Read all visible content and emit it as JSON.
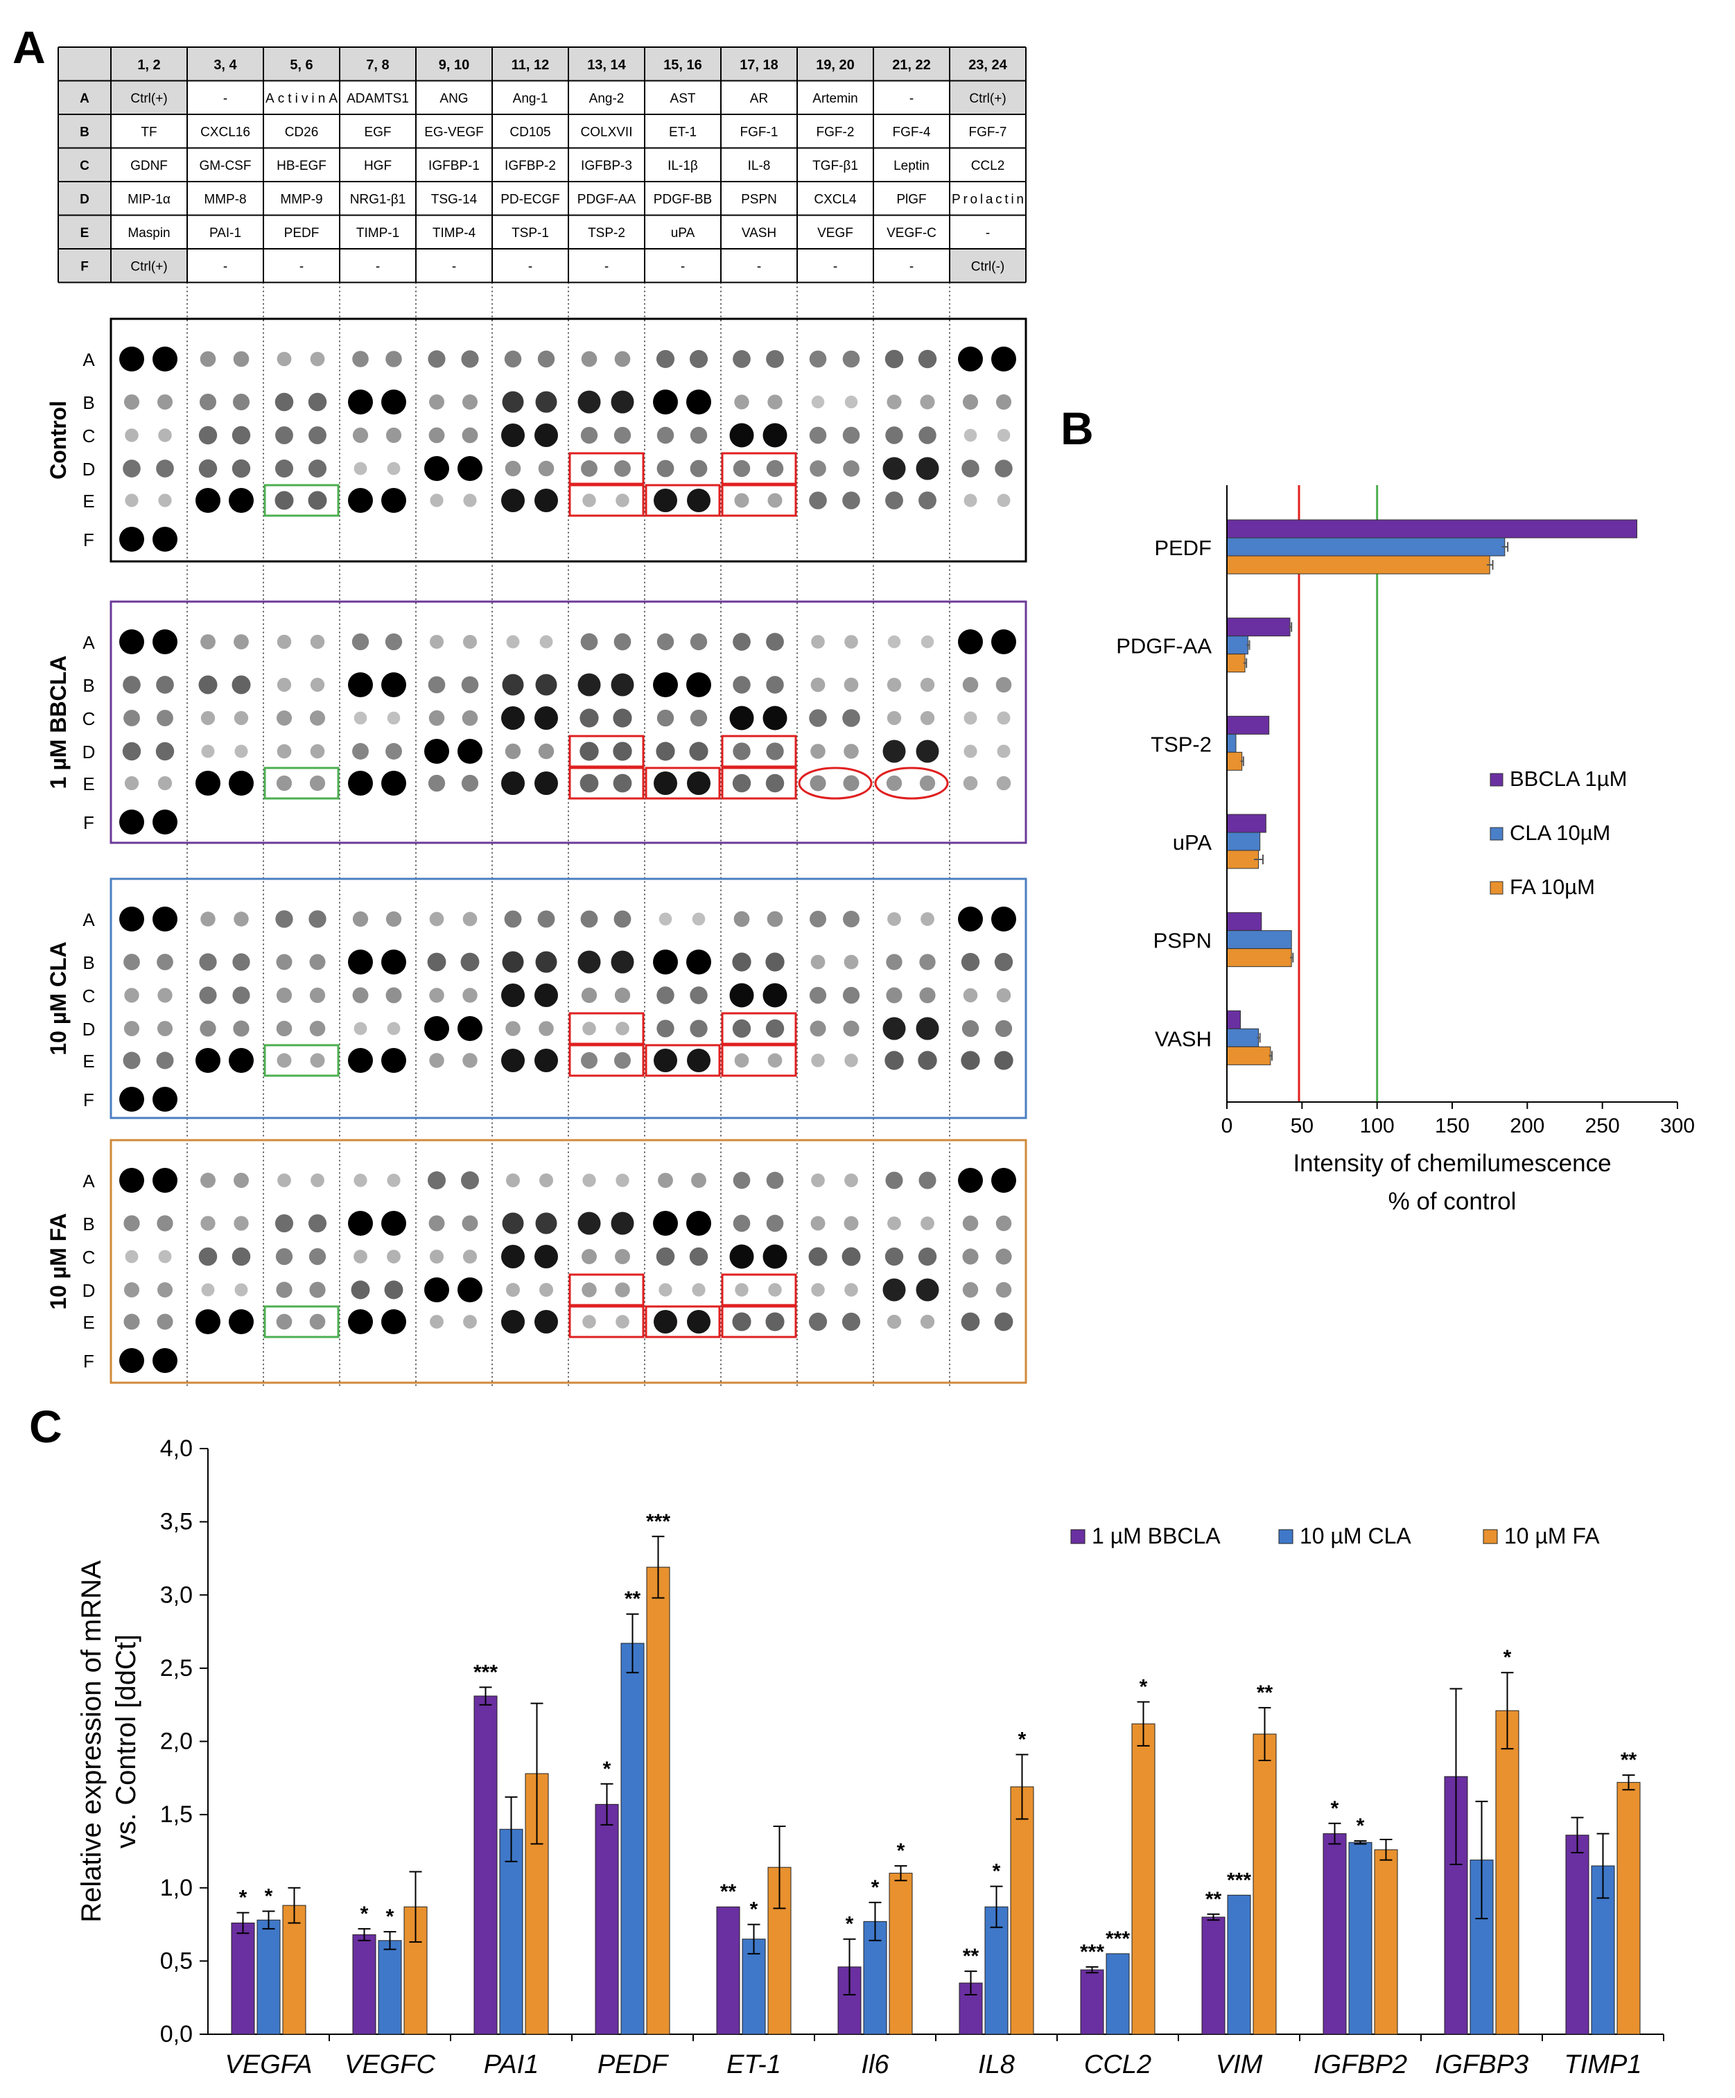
{
  "panel_letters": {
    "a": "A",
    "b": "B",
    "c": "C"
  },
  "array_layout": {
    "column_headers": [
      "1, 2",
      "3, 4",
      "5, 6",
      "7, 8",
      "9, 10",
      "11, 12",
      "13, 14",
      "15, 16",
      "17, 18",
      "19, 20",
      "21, 22",
      "23, 24"
    ],
    "rows": [
      {
        "label": "A",
        "cells": [
          "Ctrl(+)",
          "-",
          "ActivinA",
          "ADAMTS1",
          "ANG",
          "Ang-1",
          "Ang-2",
          "AST",
          "AR",
          "Artemin",
          "-",
          "Ctrl(+)"
        ]
      },
      {
        "label": "B",
        "cells": [
          "TF",
          "CXCL16",
          "CD26",
          "EGF",
          "EG-VEGF",
          "CD105",
          "COLXVII",
          "ET-1",
          "FGF-1",
          "FGF-2",
          "FGF-4",
          "FGF-7"
        ]
      },
      {
        "label": "C",
        "cells": [
          "GDNF",
          "GM-CSF",
          "HB-EGF",
          "HGF",
          "IGFBP-1",
          "IGFBP-2",
          "IGFBP-3",
          "IL-1β",
          "IL-8",
          "TGF-β1",
          "Leptin",
          "CCL2"
        ]
      },
      {
        "label": "D",
        "cells": [
          "MIP-1α",
          "MMP-8",
          "MMP-9",
          "NRG1-β1",
          "TSG-14",
          "PD-ECGF",
          "PDGF-AA",
          "PDGF-BB",
          "PSPN",
          "CXCL4",
          "PlGF",
          "Prolactin"
        ]
      },
      {
        "label": "E",
        "cells": [
          "Maspin",
          "PAI-1",
          "PEDF",
          "TIMP-1",
          "TIMP-4",
          "TSP-1",
          "TSP-2",
          "uPA",
          "VASH",
          "VEGF",
          "VEGF-C",
          "-"
        ]
      },
      {
        "label": "F",
        "cells": [
          "Ctrl(+)",
          "-",
          "-",
          "-",
          "-",
          "-",
          "-",
          "-",
          "-",
          "-",
          "-",
          "Ctrl(-)"
        ]
      }
    ]
  },
  "blots": [
    {
      "name": "Control",
      "frame_color": "#000000",
      "row_labels": [
        "A",
        "B",
        "C",
        "D",
        "E",
        "F"
      ]
    },
    {
      "name": "1 µM BBCLA",
      "frame_color": "#6b3a99",
      "row_labels": [
        "A",
        "B",
        "C",
        "D",
        "E",
        "F"
      ]
    },
    {
      "name": "10 µM CLA",
      "frame_color": "#4a7fc1",
      "row_labels": [
        "A",
        "B",
        "C",
        "D",
        "E",
        "F"
      ]
    },
    {
      "name": "10 µM FA",
      "frame_color": "#d08a3a",
      "row_labels": [
        "A",
        "B",
        "C",
        "D",
        "E",
        "F"
      ]
    }
  ],
  "highlight_colors": {
    "red": "#e02020",
    "green": "#4caf50"
  },
  "chart_data": [
    {
      "type": "bar",
      "orientation": "horizontal",
      "categories": [
        "PEDF",
        "PDGF-AA",
        "TSP-2",
        "uPA",
        "PSPN",
        "VASH"
      ],
      "series": [
        {
          "name": "BBCLA 1µM",
          "color": "#6a2fa0",
          "values": [
            273,
            42,
            28,
            26,
            23,
            9
          ],
          "errors": [
            0,
            1,
            0,
            0,
            0,
            0
          ]
        },
        {
          "name": "CLA 10µM",
          "color": "#4a7fc9",
          "values": [
            185,
            14,
            6,
            22,
            43,
            21
          ],
          "errors": [
            2,
            1,
            0,
            0,
            0,
            1
          ]
        },
        {
          "name": "FA 10µM",
          "color": "#e8912e",
          "values": [
            175,
            12,
            10,
            21,
            43,
            29
          ],
          "errors": [
            2,
            1,
            1,
            3,
            1,
            1
          ]
        }
      ],
      "xlim": [
        0,
        300
      ],
      "xticks": [
        "0",
        "50",
        "100",
        "150",
        "200",
        "250",
        "300"
      ],
      "xlabel_line1": "Intensity of chemilumescence",
      "xlabel_line2": "% of control",
      "reference_lines": [
        {
          "value": 48,
          "color": "#e02020"
        },
        {
          "value": 100,
          "color": "#4caf50"
        }
      ],
      "legend_position": "right"
    },
    {
      "type": "bar",
      "categories": [
        "VEGFA",
        "VEGFC",
        "PAI1",
        "PEDF",
        "ET-1",
        "Il6",
        "IL8",
        "CCL2",
        "VIM",
        "IGFBP2",
        "IGFBP3",
        "TIMP1"
      ],
      "series": [
        {
          "name": "1 µM BBCLA",
          "color": "#6a2fa0",
          "values": [
            0.76,
            0.68,
            2.31,
            1.57,
            0.87,
            0.46,
            0.35,
            0.44,
            0.8,
            1.37,
            1.76,
            1.36
          ],
          "errors": [
            0.07,
            0.04,
            0.06,
            0.14,
            0,
            0.19,
            0.08,
            0.02,
            0.02,
            0.07,
            0.6,
            0.12
          ],
          "sig": [
            "*",
            "*",
            "***",
            "*",
            "**",
            "*",
            "**",
            "***",
            "**",
            "*",
            "",
            ""
          ]
        },
        {
          "name": "10 µM CLA",
          "color": "#3f78c9",
          "values": [
            0.78,
            0.64,
            1.4,
            2.67,
            0.65,
            0.77,
            0.87,
            0.55,
            0.95,
            1.31,
            1.19,
            1.15
          ],
          "errors": [
            0.06,
            0.06,
            0.22,
            0.2,
            0.1,
            0.13,
            0.14,
            0,
            0,
            0.01,
            0.4,
            0.22
          ],
          "sig": [
            "*",
            "*",
            "",
            "**",
            "*",
            "*",
            "*",
            "***",
            "***",
            "*",
            "",
            ""
          ]
        },
        {
          "name": "10 µM FA",
          "color": "#e8912e",
          "values": [
            0.88,
            0.87,
            1.78,
            3.19,
            1.14,
            1.1,
            1.69,
            2.12,
            2.05,
            1.26,
            2.21,
            1.72
          ],
          "errors": [
            0.12,
            0.24,
            0.48,
            0.21,
            0.28,
            0.05,
            0.22,
            0.15,
            0.18,
            0.07,
            0.26,
            0.05
          ],
          "sig": [
            "",
            "",
            "",
            "***",
            "",
            "*",
            "*",
            "*",
            "**",
            "",
            "*",
            "**"
          ]
        }
      ],
      "ylim": [
        0,
        4
      ],
      "yticks": [
        "0,0",
        "0,5",
        "1,0",
        "1,5",
        "2,0",
        "2,5",
        "3,0",
        "3,5",
        "4,0"
      ],
      "ylabel_line1": "Relative expression of mRNA",
      "ylabel_line2": "vs. Control [ddCt]",
      "legend_position": "top-right"
    }
  ]
}
